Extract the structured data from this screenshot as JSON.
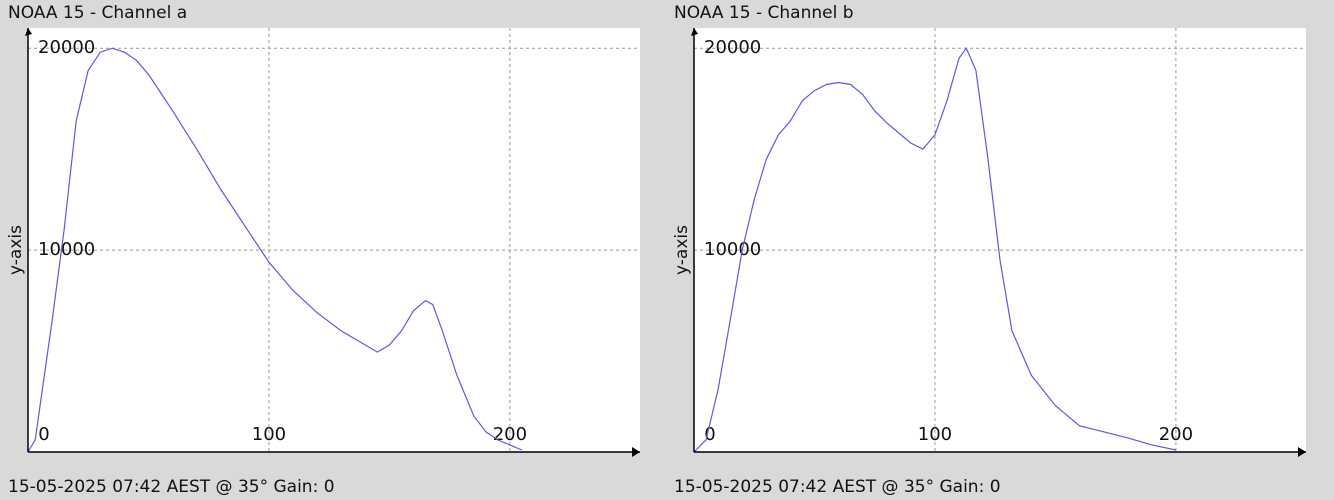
{
  "chart_data": [
    {
      "type": "line",
      "title": "NOAA 15 - Channel a",
      "ylabel": "y-axis",
      "caption": "15-05-2025 07:42 AEST @ 35° Gain: 0",
      "color": "#5a5ae0",
      "grid": true,
      "x": [
        0,
        3,
        10,
        15,
        20,
        25,
        30,
        35,
        40,
        45,
        50,
        60,
        70,
        80,
        90,
        100,
        110,
        120,
        130,
        140,
        145,
        150,
        155,
        160,
        165,
        168,
        172,
        178,
        185,
        190,
        195,
        205
      ],
      "values": [
        0,
        600,
        6500,
        11000,
        16400,
        18900,
        19800,
        20000,
        19800,
        19400,
        18700,
        16900,
        15000,
        13000,
        11200,
        9400,
        8000,
        6900,
        6000,
        5300,
        4950,
        5300,
        6000,
        7000,
        7500,
        7300,
        6000,
        3800,
        1800,
        1000,
        600,
        100
      ],
      "xlim": [
        0,
        254
      ],
      "ylim": [
        0,
        21000
      ],
      "xticks": [
        0,
        100,
        200
      ],
      "yticks": [
        10000,
        20000
      ]
    },
    {
      "type": "line",
      "title": "NOAA 15 - Channel b",
      "ylabel": "y-axis",
      "caption": "15-05-2025 07:42 AEST @ 35° Gain: 0",
      "color": "#5a5ae0",
      "grid": true,
      "x": [
        0,
        5,
        10,
        15,
        20,
        25,
        30,
        35,
        40,
        45,
        50,
        55,
        60,
        65,
        70,
        75,
        80,
        85,
        90,
        95,
        100,
        105,
        110,
        113,
        117,
        122,
        127,
        132,
        140,
        150,
        160,
        170,
        180,
        190,
        200
      ],
      "values": [
        0,
        600,
        3100,
        6500,
        10000,
        12500,
        14500,
        15700,
        16400,
        17400,
        17900,
        18200,
        18300,
        18200,
        17700,
        16900,
        16300,
        15800,
        15300,
        15000,
        15700,
        17400,
        19500,
        20000,
        18900,
        14500,
        9500,
        6000,
        3800,
        2300,
        1300,
        1000,
        700,
        350,
        100
      ],
      "xlim": [
        0,
        254
      ],
      "ylim": [
        0,
        21000
      ],
      "xticks": [
        0,
        100,
        200
      ],
      "yticks": [
        10000,
        20000
      ]
    }
  ]
}
